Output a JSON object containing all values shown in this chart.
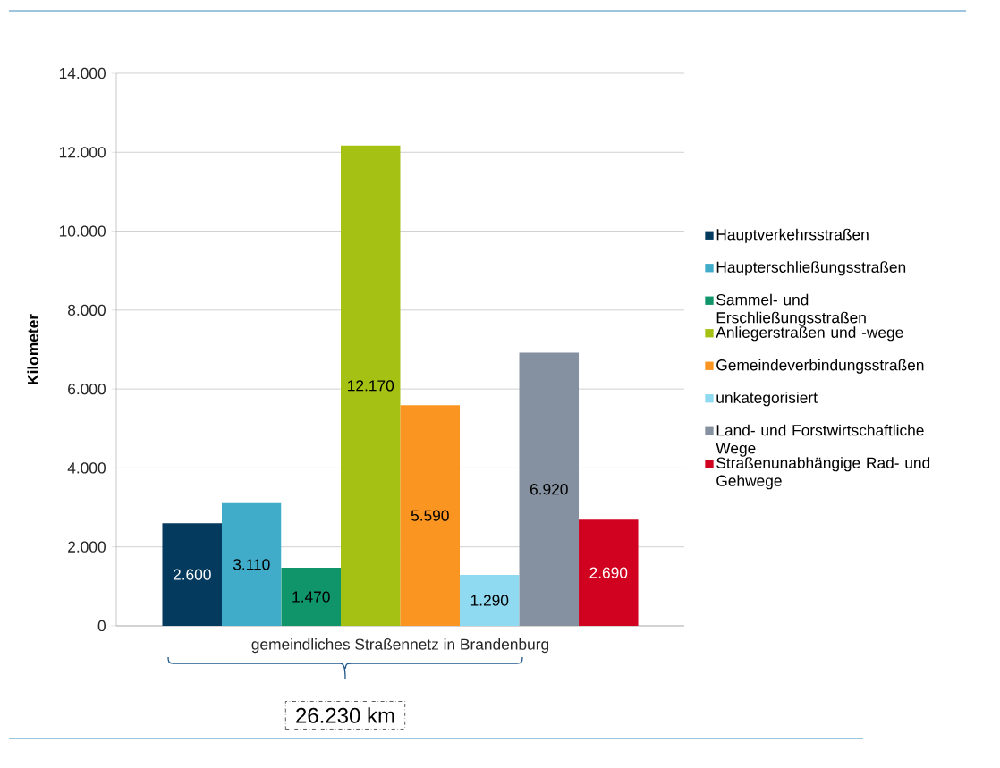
{
  "chart_data": {
    "type": "bar",
    "ylabel": "Kilometer",
    "categories": [
      "gemeindliches Straßennetz in Brandenburg"
    ],
    "series": [
      {
        "name": "Hauptverkehrsstraßen",
        "color": "#033a5e",
        "values": [
          2600
        ],
        "value_labels": [
          "2.600"
        ]
      },
      {
        "name": "Haupterschließungsstraßen",
        "color": "#41acc9",
        "values": [
          3110
        ],
        "value_labels": [
          "3.110"
        ]
      },
      {
        "name": "Sammel- und Erschließungsstraßen",
        "color": "#10956a",
        "values": [
          1470
        ],
        "value_labels": [
          "1.470"
        ]
      },
      {
        "name": "Anliegerstraßen und -wege",
        "color": "#a5c214",
        "values": [
          12170
        ],
        "value_labels": [
          "12.170"
        ]
      },
      {
        "name": "Gemeindeverbindungsstraßen",
        "color": "#f99520",
        "values": [
          5590
        ],
        "value_labels": [
          "5.590"
        ]
      },
      {
        "name": "unkategorisiert",
        "color": "#8fdaf0",
        "values": [
          1290
        ],
        "value_labels": [
          "1.290"
        ]
      },
      {
        "name": "Land- und Forstwirtschaftliche Wege",
        "color": "#8590a0",
        "values": [
          6920
        ],
        "value_labels": [
          "6.920"
        ]
      },
      {
        "name": "Straßenunabhängige Rad- und Gehwege",
        "color": "#d0021f",
        "values": [
          2690
        ],
        "value_labels": [
          "2.690"
        ]
      }
    ],
    "ylim": [
      0,
      14000
    ],
    "yticks": [
      0,
      {
        "value": 2000,
        "label": "2.000"
      },
      {
        "value": 4000,
        "label": "4.000"
      },
      {
        "value": 6000,
        "label": "6.000"
      },
      {
        "value": 8000,
        "label": "8.000"
      },
      {
        "value": 10000,
        "label": "10.000"
      },
      {
        "value": 12000,
        "label": "12.000"
      },
      {
        "value": 14000,
        "label": "14.000"
      }
    ],
    "grid": "y",
    "legend": "right",
    "annotations": [
      "26.230 km"
    ]
  }
}
